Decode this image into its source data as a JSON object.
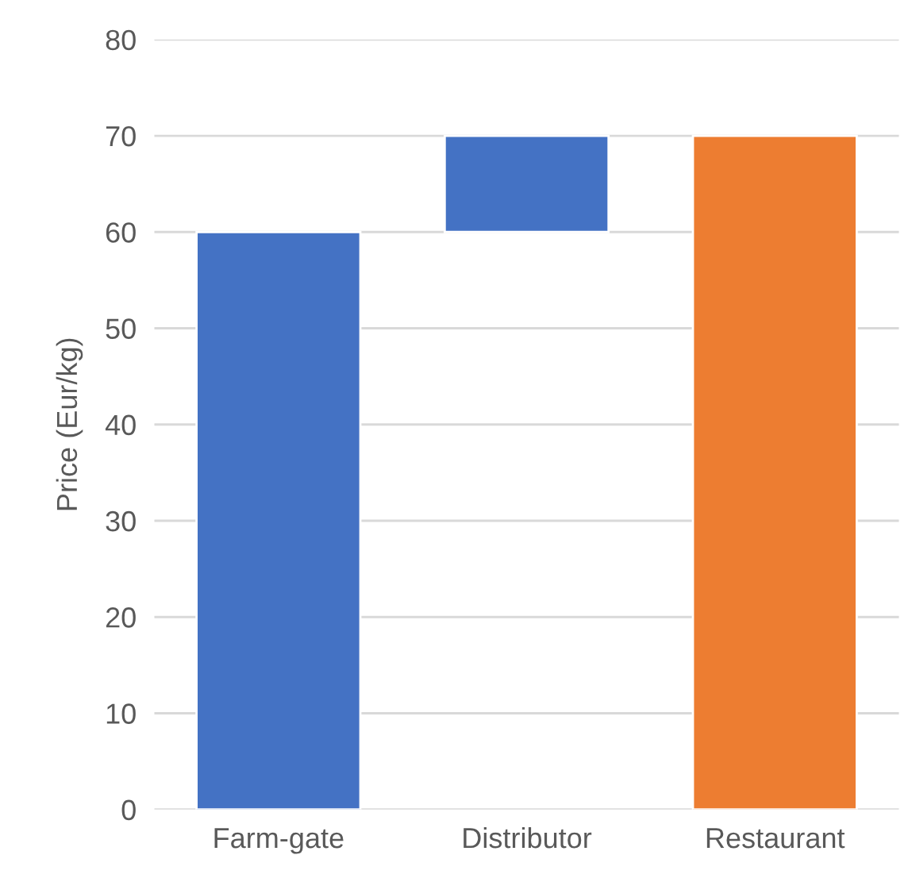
{
  "chart_data": {
    "type": "bar",
    "ylabel": "Price (Eur/kg)",
    "categories": [
      "Farm-gate",
      "Distributor",
      "Restaurant"
    ],
    "values": [
      60,
      10,
      70
    ],
    "base": [
      0,
      60,
      0
    ],
    "colors": [
      "#4472c4",
      "#4472c4",
      "#ed7d31"
    ],
    "ylim": [
      0,
      80
    ],
    "yticks": [
      0,
      10,
      20,
      30,
      40,
      50,
      60,
      70,
      80
    ],
    "grid": "y"
  }
}
